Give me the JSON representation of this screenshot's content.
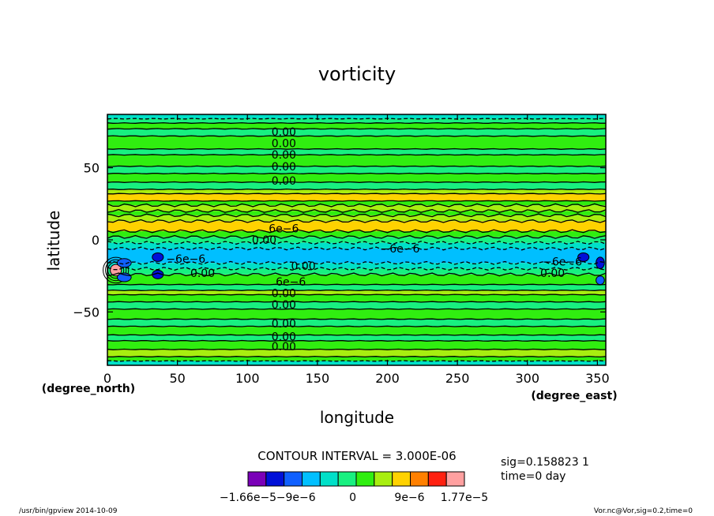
{
  "chart_data": {
    "type": "heatmap",
    "title": "vorticity",
    "xlabel": "longitude",
    "ylabel": "latitude",
    "x_unit": "(degree_east)",
    "y_unit": "(degree_north)",
    "xlim": [
      0,
      356
    ],
    "ylim": [
      -87,
      87
    ],
    "x_ticks": [
      0,
      50,
      100,
      150,
      200,
      250,
      300,
      350
    ],
    "y_ticks": [
      -50,
      0,
      50
    ],
    "y_tick_labels": [
      "−50",
      "0",
      "50"
    ],
    "contour_interval_text": "CONTOUR INTERVAL = 3.000E-06",
    "colorbar": {
      "colors": [
        "#7a00b8",
        "#0010d8",
        "#1060ff",
        "#00bfff",
        "#00e0c8",
        "#18f080",
        "#30ee10",
        "#a8ee10",
        "#ffd200",
        "#ff8000",
        "#ff2010",
        "#ffa0a0"
      ],
      "tick_labels": [
        "−1.66e−5",
        "−9e−6",
        "0",
        "9e−6",
        "1.77e−5"
      ],
      "tick_values": [
        -1.66e-05,
        -9e-06,
        0,
        9e-06,
        1.77e-05
      ],
      "min": -1.66e-05,
      "max": 1.77e-05
    },
    "bands": [
      {
        "lat_min": -87,
        "lat_max": -84,
        "value": -3e-06
      },
      {
        "lat_min": -84,
        "lat_max": -81,
        "value": 3e-06
      },
      {
        "lat_min": -81,
        "lat_max": -76,
        "value": 6e-06
      },
      {
        "lat_min": -76,
        "lat_max": -70,
        "value": 3e-06
      },
      {
        "lat_min": -70,
        "lat_max": -66,
        "value": 0
      },
      {
        "lat_min": -66,
        "lat_max": -60,
        "value": 3e-06
      },
      {
        "lat_min": -60,
        "lat_max": -55,
        "value": 0
      },
      {
        "lat_min": -55,
        "lat_max": -48,
        "value": 3e-06
      },
      {
        "lat_min": -48,
        "lat_max": -43,
        "value": 0
      },
      {
        "lat_min": -43,
        "lat_max": -38,
        "value": 3e-06
      },
      {
        "lat_min": -38,
        "lat_max": -35,
        "value": 6e-06
      },
      {
        "lat_min": -35,
        "lat_max": -31,
        "value": 0
      },
      {
        "lat_min": -31,
        "lat_max": -24,
        "value": 3e-06
      },
      {
        "lat_min": -24,
        "lat_max": -20,
        "value": 0
      },
      {
        "lat_min": -20,
        "lat_max": -16,
        "value": -3e-06
      },
      {
        "lat_min": -16,
        "lat_max": -6,
        "value": -6e-06
      },
      {
        "lat_min": -6,
        "lat_max": -2,
        "value": -3e-06
      },
      {
        "lat_min": -2,
        "lat_max": 2,
        "value": 0
      },
      {
        "lat_min": 2,
        "lat_max": 6,
        "value": 3e-06
      },
      {
        "lat_min": 6,
        "lat_max": 13,
        "value": 9e-06
      },
      {
        "lat_min": 13,
        "lat_max": 17,
        "value": 6e-06
      },
      {
        "lat_min": 17,
        "lat_max": 20,
        "value": 3e-06
      },
      {
        "lat_min": 20,
        "lat_max": 24,
        "value": 6e-06
      },
      {
        "lat_min": 24,
        "lat_max": 27,
        "value": 3e-06
      },
      {
        "lat_min": 27,
        "lat_max": 32,
        "value": 9e-06
      },
      {
        "lat_min": 32,
        "lat_max": 35,
        "value": 6e-06
      },
      {
        "lat_min": 35,
        "lat_max": 40,
        "value": 0
      },
      {
        "lat_min": 40,
        "lat_max": 46,
        "value": 3e-06
      },
      {
        "lat_min": 46,
        "lat_max": 51,
        "value": 0
      },
      {
        "lat_min": 51,
        "lat_max": 59,
        "value": 3e-06
      },
      {
        "lat_min": 59,
        "lat_max": 63,
        "value": 0
      },
      {
        "lat_min": 63,
        "lat_max": 72,
        "value": 3e-06
      },
      {
        "lat_min": 72,
        "lat_max": 77,
        "value": 0
      },
      {
        "lat_min": 77,
        "lat_max": 81,
        "value": 3e-06
      },
      {
        "lat_min": 81,
        "lat_max": 84,
        "value": 0
      },
      {
        "lat_min": 84,
        "lat_max": 87,
        "value": -3e-06
      }
    ],
    "blobs": [
      {
        "lon": 6,
        "lat": -21,
        "value": 1.77e-05,
        "r_lon": 4,
        "r_lat": 4
      },
      {
        "lon": 12,
        "lat": -16,
        "value": -9e-06,
        "r_lon": 5,
        "r_lat": 3
      },
      {
        "lon": 12,
        "lat": -26,
        "value": -9e-06,
        "r_lon": 5,
        "r_lat": 3
      },
      {
        "lon": 36,
        "lat": -12,
        "value": -1.2e-05,
        "r_lon": 4,
        "r_lat": 3
      },
      {
        "lon": 36,
        "lat": -24,
        "value": -1.2e-05,
        "r_lon": 4,
        "r_lat": 3
      },
      {
        "lon": 340,
        "lat": -12,
        "value": -1.2e-05,
        "r_lon": 4,
        "r_lat": 3
      },
      {
        "lon": 352,
        "lat": -16,
        "value": -1.2e-05,
        "r_lon": 3,
        "r_lat": 4
      },
      {
        "lon": 352,
        "lat": -28,
        "value": -9e-06,
        "r_lon": 3,
        "r_lat": 3
      }
    ],
    "contour_labels": [
      {
        "text": "0.00",
        "lon": 126,
        "lat": 75
      },
      {
        "text": "0.00",
        "lon": 126,
        "lat": 67
      },
      {
        "text": "0.00",
        "lon": 126,
        "lat": 59
      },
      {
        "text": "0.00",
        "lon": 126,
        "lat": 51
      },
      {
        "text": "0.00",
        "lon": 126,
        "lat": 41
      },
      {
        "text": "6e−6",
        "lon": 126,
        "lat": 8
      },
      {
        "text": "0.00",
        "lon": 112,
        "lat": 0
      },
      {
        "text": "−6e−6",
        "lon": 209,
        "lat": -6
      },
      {
        "text": "−6e−6",
        "lon": 56,
        "lat": -13
      },
      {
        "text": "0.00",
        "lon": 140,
        "lat": -18
      },
      {
        "text": "0.00",
        "lon": 68,
        "lat": -23
      },
      {
        "text": "−6e−6",
        "lon": 325,
        "lat": -15
      },
      {
        "text": "0.00",
        "lon": 318,
        "lat": -23
      },
      {
        "text": "6e−6",
        "lon": 131,
        "lat": -29
      },
      {
        "text": "0.00",
        "lon": 126,
        "lat": -37
      },
      {
        "text": "0.00",
        "lon": 126,
        "lat": -45
      },
      {
        "text": "0.00",
        "lon": 126,
        "lat": -58
      },
      {
        "text": "0.00",
        "lon": 126,
        "lat": -67
      },
      {
        "text": "0.00",
        "lon": 126,
        "lat": -74
      }
    ]
  },
  "run_info": {
    "sig_line": "sig=0.158823 1",
    "time_line": "time=0  day"
  },
  "footer": {
    "left": "/usr/bin/gpview   2014-10-09",
    "right": "Vor.nc@Vor,sig=0.2,time=0"
  }
}
